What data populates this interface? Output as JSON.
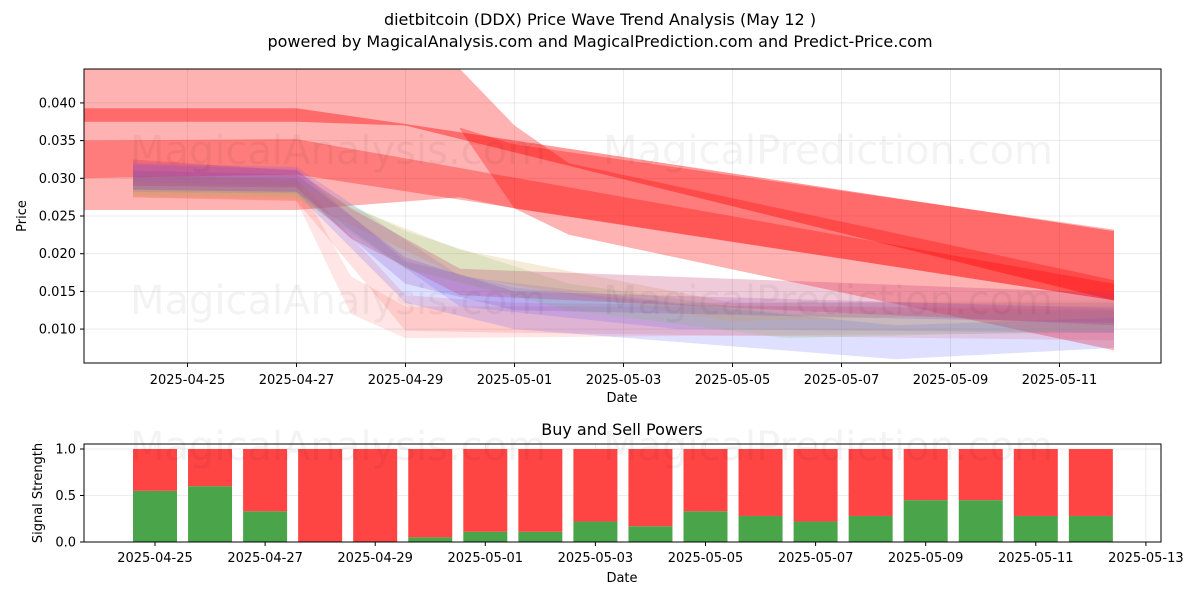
{
  "titles": {
    "line1": "dietbitcoin (DDX) Price Wave Trend Analysis (May 12 )",
    "line2": "powered by MagicalAnalysis.com and MagicalPrediction.com and Predict-Price.com"
  },
  "watermarks": [
    "MagicalAnalysis.com",
    "MagicalPrediction.com"
  ],
  "chart_data": [
    {
      "type": "area",
      "title": "",
      "xlabel": "Date",
      "ylabel": "Price",
      "x_ticks": [
        "2025-04-25",
        "2025-04-27",
        "2025-04-29",
        "2025-05-01",
        "2025-05-03",
        "2025-05-05",
        "2025-05-07",
        "2025-05-09",
        "2025-05-11"
      ],
      "y_ticks": [
        "0.010",
        "0.015",
        "0.020",
        "0.025",
        "0.030",
        "0.035",
        "0.040"
      ],
      "xlim": [
        "2025-04-23",
        "2025-05-12"
      ],
      "ylim": [
        0.0055,
        0.0445
      ],
      "grid": true,
      "bands": [
        {
          "color": "#ff0000",
          "alpha": 0.3,
          "points": [
            {
              "date": "2025-04-23",
              "low": 0.0258,
              "high": 0.0445
            },
            {
              "date": "2025-04-27",
              "low": 0.0258,
              "high": 0.0445
            },
            {
              "date": "2025-04-30",
              "low": 0.0275,
              "high": 0.0445
            },
            {
              "date": "2025-05-01",
              "low": 0.026,
              "high": 0.037
            },
            {
              "date": "2025-05-02",
              "low": 0.0225,
              "high": 0.032
            },
            {
              "date": "2025-05-12",
              "low": 0.0072,
              "high": 0.0165
            }
          ]
        },
        {
          "color": "#ff0000",
          "alpha": 0.3,
          "points": [
            {
              "date": "2025-04-23",
              "low": 0.03,
              "high": 0.035
            },
            {
              "date": "2025-04-27",
              "low": 0.0305,
              "high": 0.0352
            },
            {
              "date": "2025-05-12",
              "low": 0.0138,
              "high": 0.016
            }
          ]
        },
        {
          "color": "#ff0000",
          "alpha": 0.4,
          "points": [
            {
              "date": "2025-04-23",
              "low": 0.0375,
              "high": 0.0393
            },
            {
              "date": "2025-04-27",
              "low": 0.0375,
              "high": 0.0393
            },
            {
              "date": "2025-04-29",
              "low": 0.037,
              "high": 0.0372
            },
            {
              "date": "2025-05-12",
              "low": 0.0138,
              "high": 0.023
            }
          ]
        },
        {
          "color": "#ff0000",
          "alpha": 0.3,
          "points": [
            {
              "date": "2025-04-30",
              "low": 0.0365,
              "high": 0.0367
            },
            {
              "date": "2025-05-01",
              "low": 0.026,
              "high": 0.0345
            },
            {
              "date": "2025-05-12",
              "low": 0.0138,
              "high": 0.0232
            }
          ]
        },
        {
          "color": "#ff3333",
          "alpha": 0.15,
          "points": [
            {
              "date": "2025-04-24",
              "low": 0.0275,
              "high": 0.0305
            },
            {
              "date": "2025-04-27",
              "low": 0.027,
              "high": 0.03
            },
            {
              "date": "2025-04-29",
              "low": 0.0098,
              "high": 0.0145
            },
            {
              "date": "2025-05-01",
              "low": 0.0095,
              "high": 0.0135
            },
            {
              "date": "2025-05-12",
              "low": 0.0085,
              "high": 0.0125
            }
          ]
        },
        {
          "color": "#ff3333",
          "alpha": 0.13,
          "points": [
            {
              "date": "2025-04-24",
              "low": 0.0275,
              "high": 0.0303
            },
            {
              "date": "2025-04-27",
              "low": 0.027,
              "high": 0.0298
            },
            {
              "date": "2025-04-28",
              "low": 0.012,
              "high": 0.017
            },
            {
              "date": "2025-04-29",
              "low": 0.0088,
              "high": 0.013
            },
            {
              "date": "2025-05-12",
              "low": 0.0095,
              "high": 0.013
            }
          ]
        },
        {
          "color": "#4d4dff",
          "alpha": 0.18,
          "points": [
            {
              "date": "2025-04-24",
              "low": 0.0282,
              "high": 0.0318
            },
            {
              "date": "2025-04-27",
              "low": 0.028,
              "high": 0.0312
            },
            {
              "date": "2025-04-29",
              "low": 0.0135,
              "high": 0.019
            },
            {
              "date": "2025-05-01",
              "low": 0.01,
              "high": 0.0155
            },
            {
              "date": "2025-05-08",
              "low": 0.006,
              "high": 0.0105
            },
            {
              "date": "2025-05-12",
              "low": 0.0075,
              "high": 0.0115
            }
          ]
        },
        {
          "color": "#4d4dff",
          "alpha": 0.16,
          "points": [
            {
              "date": "2025-04-24",
              "low": 0.0285,
              "high": 0.032
            },
            {
              "date": "2025-04-27",
              "low": 0.0282,
              "high": 0.0315
            },
            {
              "date": "2025-04-30",
              "low": 0.013,
              "high": 0.017
            },
            {
              "date": "2025-05-04",
              "low": 0.01,
              "high": 0.0135
            },
            {
              "date": "2025-05-12",
              "low": 0.0095,
              "high": 0.0135
            }
          ]
        },
        {
          "color": "#66cc66",
          "alpha": 0.2,
          "points": [
            {
              "date": "2025-04-24",
              "low": 0.0278,
              "high": 0.0305
            },
            {
              "date": "2025-04-27",
              "low": 0.0275,
              "high": 0.03
            },
            {
              "date": "2025-04-29",
              "low": 0.018,
              "high": 0.023
            },
            {
              "date": "2025-05-02",
              "low": 0.0125,
              "high": 0.016
            },
            {
              "date": "2025-05-06",
              "low": 0.0088,
              "high": 0.012
            },
            {
              "date": "2025-05-12",
              "low": 0.0098,
              "high": 0.0125
            }
          ]
        },
        {
          "color": "#d4a050",
          "alpha": 0.22,
          "points": [
            {
              "date": "2025-04-24",
              "low": 0.0275,
              "high": 0.0295
            },
            {
              "date": "2025-04-27",
              "low": 0.0272,
              "high": 0.029
            },
            {
              "date": "2025-04-30",
              "low": 0.017,
              "high": 0.0205
            },
            {
              "date": "2025-05-05",
              "low": 0.011,
              "high": 0.0135
            },
            {
              "date": "2025-05-12",
              "low": 0.0125,
              "high": 0.0138
            }
          ]
        },
        {
          "color": "#8040c0",
          "alpha": 0.2,
          "points": [
            {
              "date": "2025-04-24",
              "low": 0.0285,
              "high": 0.031
            },
            {
              "date": "2025-04-27",
              "low": 0.0282,
              "high": 0.0305
            },
            {
              "date": "2025-04-29",
              "low": 0.016,
              "high": 0.0195
            },
            {
              "date": "2025-05-01",
              "low": 0.0125,
              "high": 0.015
            },
            {
              "date": "2025-05-12",
              "low": 0.0108,
              "high": 0.0128
            }
          ]
        },
        {
          "color": "#c0306a",
          "alpha": 0.25,
          "points": [
            {
              "date": "2025-04-24",
              "low": 0.029,
              "high": 0.0325
            },
            {
              "date": "2025-04-27",
              "low": 0.0288,
              "high": 0.031
            },
            {
              "date": "2025-04-28",
              "low": 0.022,
              "high": 0.026
            },
            {
              "date": "2025-04-30",
              "low": 0.0145,
              "high": 0.018
            },
            {
              "date": "2025-05-12",
              "low": 0.0105,
              "high": 0.0148
            }
          ]
        }
      ]
    },
    {
      "type": "bar",
      "stacked": true,
      "title": "Buy and Sell Powers",
      "xlabel": "Date",
      "ylabel": "Signal Strength",
      "x_ticks": [
        "2025-04-25",
        "2025-04-27",
        "2025-04-29",
        "2025-05-01",
        "2025-05-03",
        "2025-05-05",
        "2025-05-07",
        "2025-05-09",
        "2025-05-11",
        "2025-05-13"
      ],
      "y_ticks": [
        "0.0",
        "0.5",
        "1.0"
      ],
      "ylim": [
        0,
        1.05
      ],
      "grid": true,
      "categories": [
        "2025-04-25",
        "2025-04-26",
        "2025-04-27",
        "2025-04-28",
        "2025-04-29",
        "2025-04-30",
        "2025-05-01",
        "2025-05-02",
        "2025-05-03",
        "2025-05-04",
        "2025-05-05",
        "2025-05-06",
        "2025-05-07",
        "2025-05-08",
        "2025-05-09",
        "2025-05-10",
        "2025-05-11",
        "2025-05-12"
      ],
      "series": [
        {
          "color": "#4aa54a",
          "values": [
            0.55,
            0.6,
            0.33,
            0.0,
            0.0,
            0.05,
            0.11,
            0.11,
            0.22,
            0.17,
            0.33,
            0.28,
            0.22,
            0.28,
            0.45,
            0.45,
            0.28,
            0.28
          ]
        },
        {
          "color": "#ff4444",
          "values": [
            0.45,
            0.4,
            0.67,
            1.0,
            1.0,
            0.95,
            0.89,
            0.89,
            0.78,
            0.83,
            0.67,
            0.72,
            0.78,
            0.72,
            0.55,
            0.55,
            0.72,
            0.72
          ]
        }
      ]
    }
  ]
}
